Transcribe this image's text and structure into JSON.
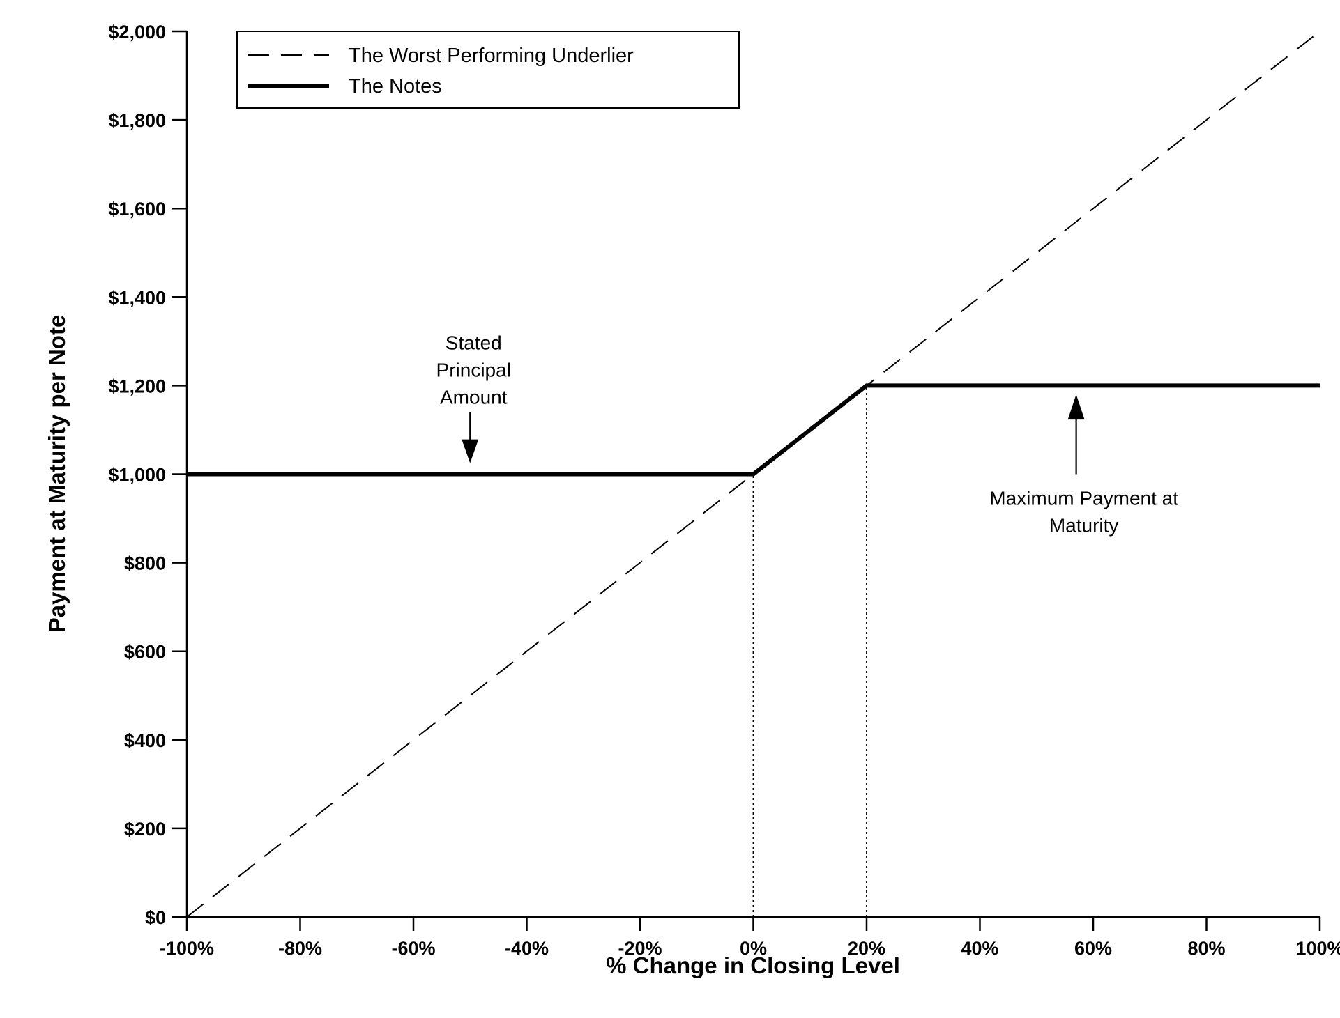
{
  "chart_data": {
    "type": "line",
    "xlabel": "% Change in Closing Level",
    "ylabel": "Payment at Maturity per Note",
    "xlim": [
      -100,
      100
    ],
    "ylim": [
      0,
      2000
    ],
    "x_ticks": [
      -100,
      -80,
      -60,
      -40,
      -20,
      0,
      20,
      40,
      60,
      80,
      100
    ],
    "x_tick_labels": [
      "-100%",
      "-80%",
      "-60%",
      "-40%",
      "-20%",
      "0%",
      "20%",
      "40%",
      "60%",
      "80%",
      "100%"
    ],
    "y_ticks": [
      0,
      200,
      400,
      600,
      800,
      1000,
      1200,
      1400,
      1600,
      1800,
      2000
    ],
    "y_tick_labels": [
      "$0",
      "$200",
      "$400",
      "$600",
      "$800",
      "$1,000",
      "$1,200",
      "$1,400",
      "$1,600",
      "$1,800",
      "$2,000"
    ],
    "grid": false,
    "legend_position": "top-left",
    "series": [
      {
        "name": "The Worst Performing Underlier",
        "style": "dashed",
        "x": [
          -100,
          100
        ],
        "y": [
          0,
          2000
        ]
      },
      {
        "name": "The Notes",
        "style": "solid-thick",
        "x": [
          -100,
          0,
          20,
          100
        ],
        "y": [
          1000,
          1000,
          1200,
          1200
        ]
      }
    ],
    "reference_lines": [
      {
        "style": "dotted",
        "x": 0,
        "y_from": 0,
        "y_to": 1000
      },
      {
        "style": "dotted",
        "x": 20,
        "y_from": 0,
        "y_to": 1200
      }
    ],
    "annotations": [
      {
        "lines": [
          "Stated",
          "Principal",
          "Amount"
        ],
        "arrow": "down",
        "x": -50,
        "arrow_from": 1140,
        "arrow_to": 1025
      },
      {
        "lines": [
          "Maximum Payment at",
          "Maturity"
        ],
        "arrow": "up",
        "x": 57,
        "arrow_from": 1000,
        "arrow_to": 1180
      }
    ],
    "colors": {
      "line": "#000000",
      "background": "#ffffff"
    }
  }
}
